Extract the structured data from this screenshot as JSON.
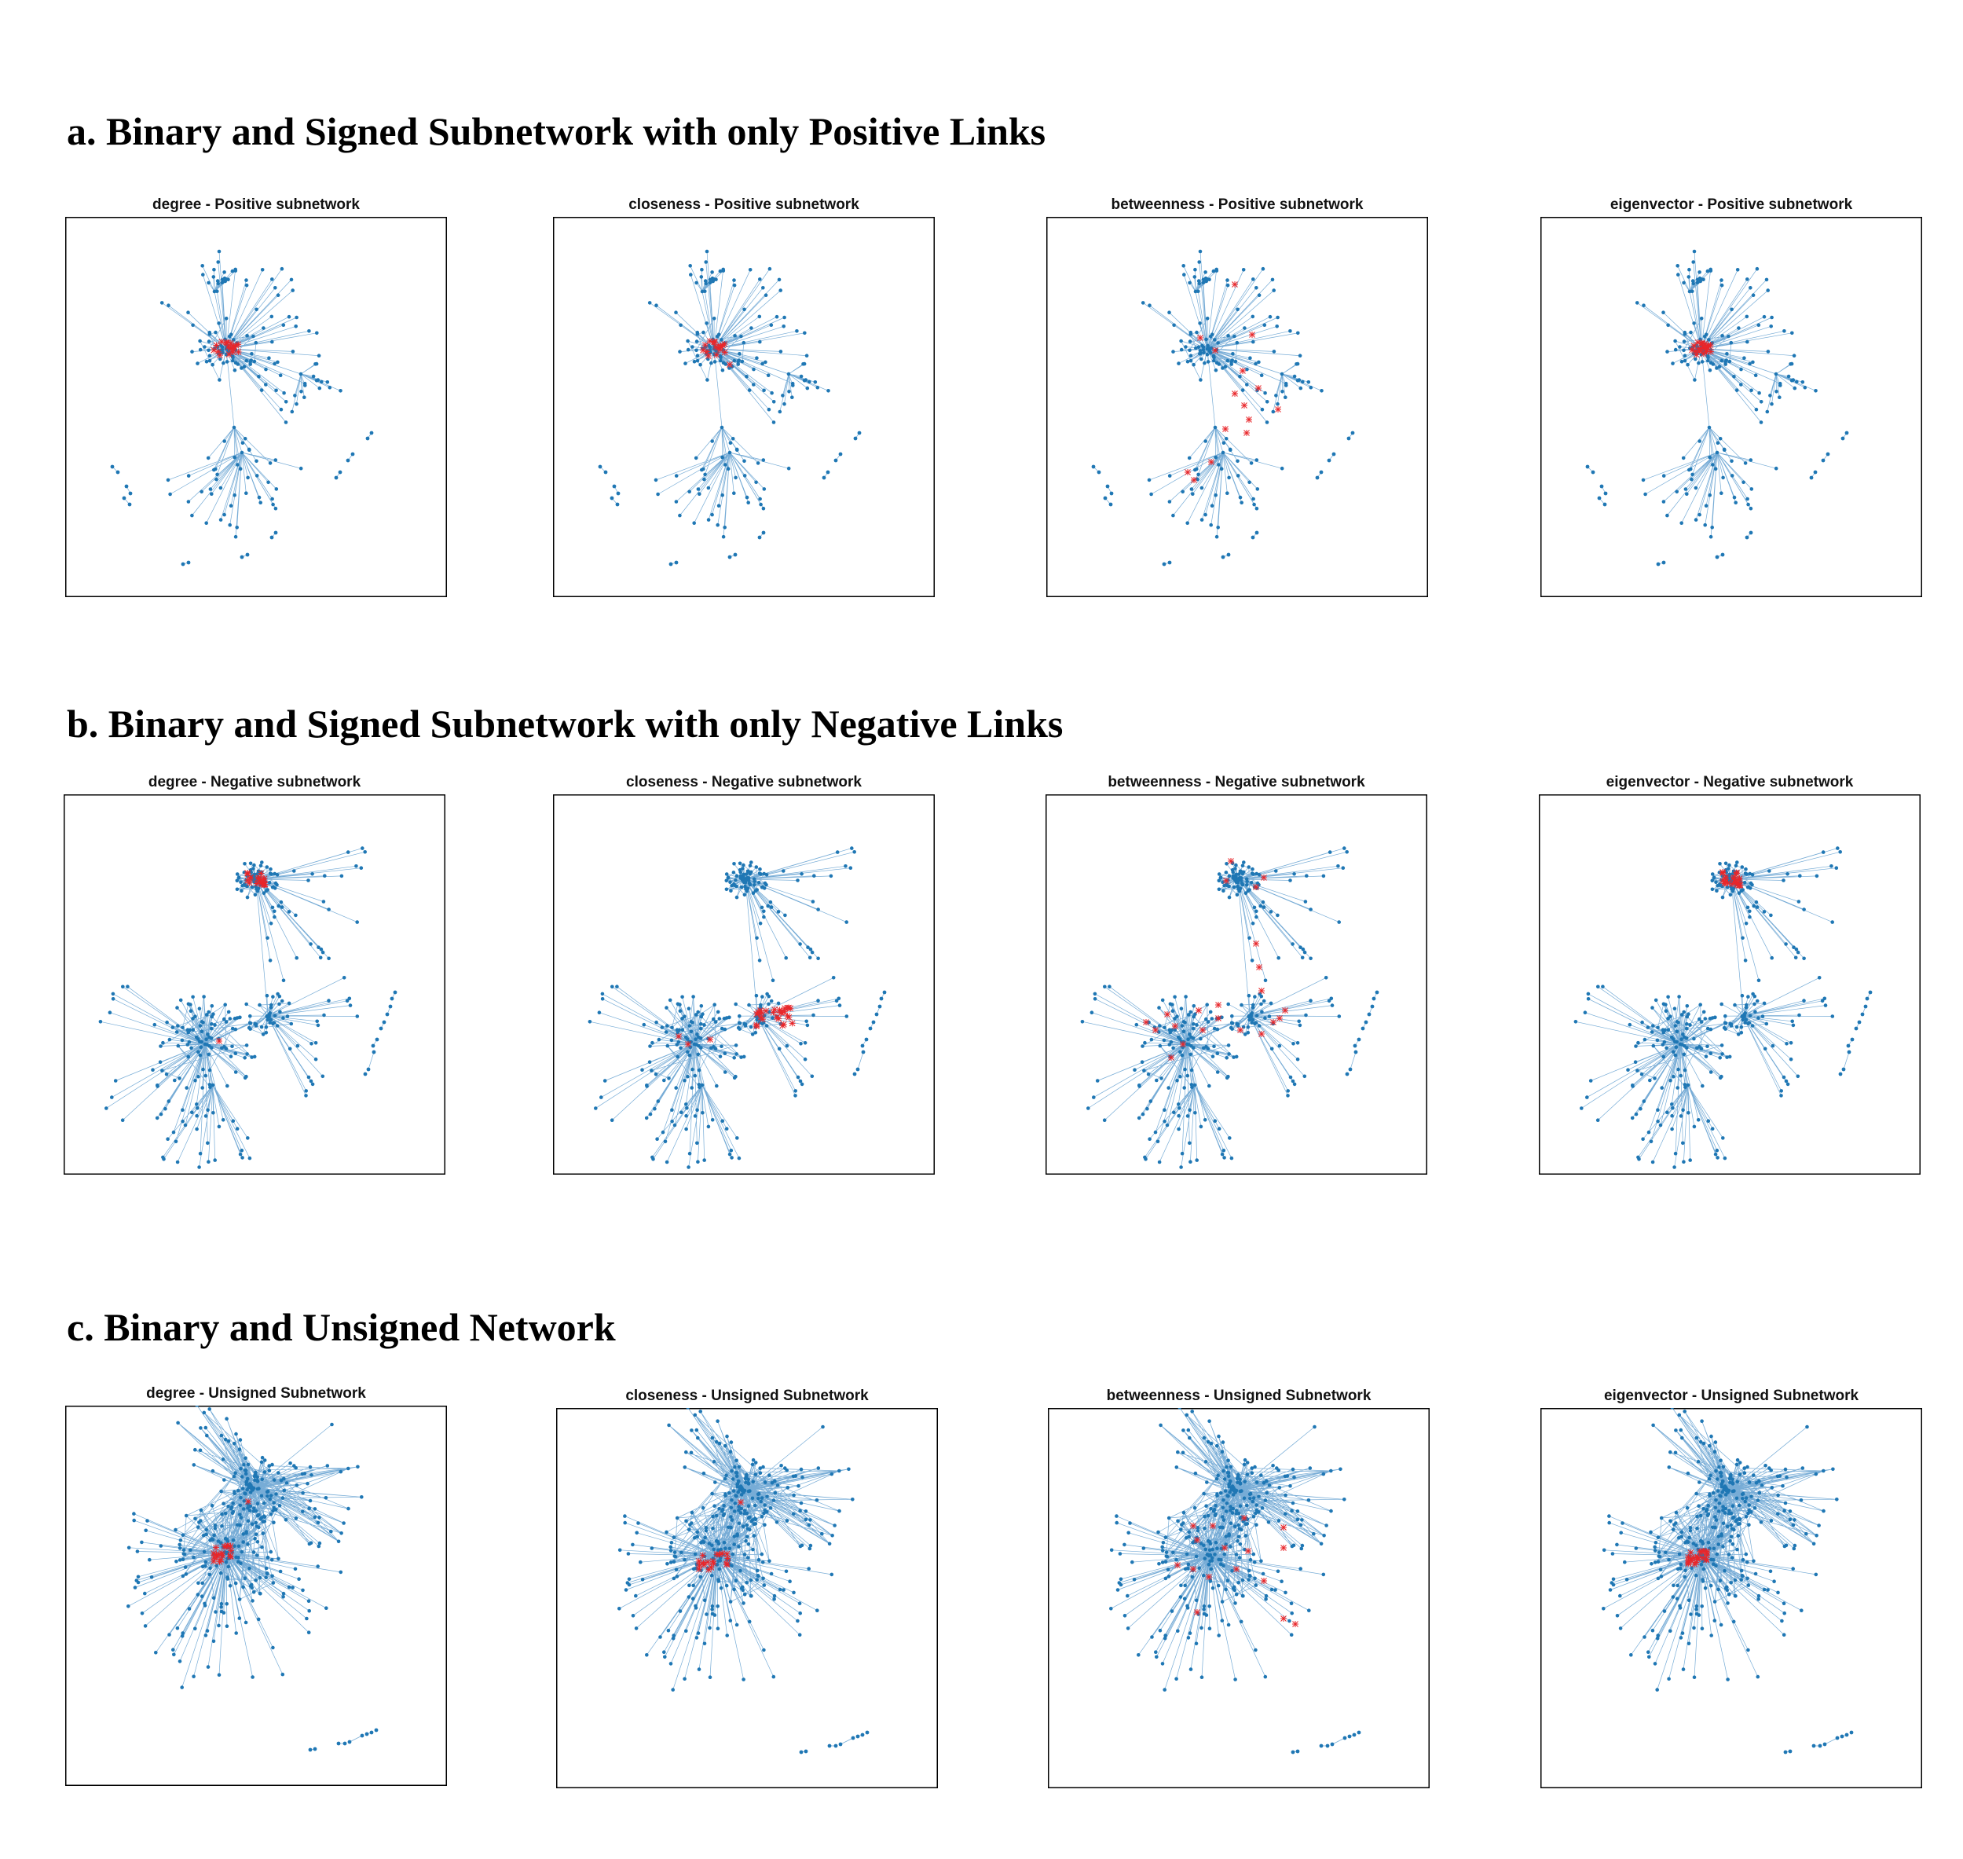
{
  "sections": [
    {
      "title": "a. Binary and Signed Subnetwork with only Positive Links",
      "panels": [
        "degree - Positive subnetwork",
        "closeness - Positive subnetwork",
        "betweenness - Positive subnetwork",
        "eigenvector - Positive subnetwork"
      ]
    },
    {
      "title": "b. Binary and Signed Subnetwork with only Negative Links",
      "panels": [
        "degree - Negative subnetwork",
        "closeness - Negative subnetwork",
        "betweenness - Negative subnetwork",
        "eigenvector - Negative subnetwork"
      ]
    },
    {
      "title": "c. Binary and Unsigned Network",
      "panels": [
        "degree - Unsigned Subnetwork",
        "closeness - Unsigned Subnetwork",
        "betweenness - Unsigned Subnetwork",
        "eigenvector - Unsigned Subnetwork"
      ]
    }
  ],
  "colors": {
    "node": "#1f77b4",
    "edge": "#4a90c8",
    "highlight": "#e8262a",
    "frame": "#000000"
  },
  "chart_data": {
    "type": "network-graph",
    "rows": [
      "Positive subnetwork",
      "Negative subnetwork",
      "Unsigned Subnetwork"
    ],
    "columns": [
      "degree",
      "closeness",
      "betweenness",
      "eigenvector"
    ],
    "node_color": "blue",
    "highlighted_nodes_color": "red",
    "axes_visible": false
  }
}
